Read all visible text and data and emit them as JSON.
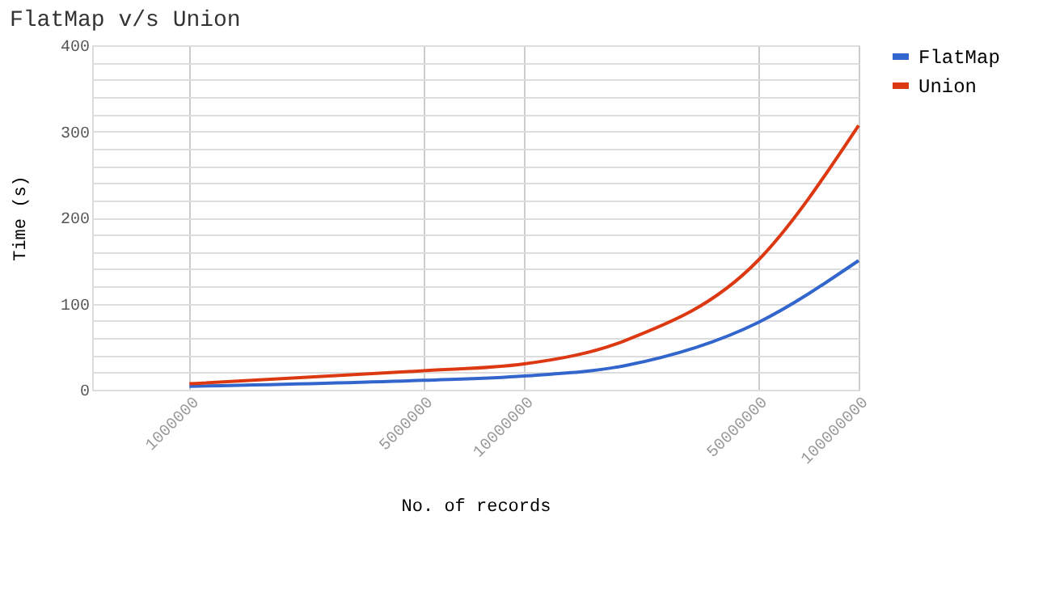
{
  "chart_data": {
    "type": "line",
    "title": "FlatMap v/s Union",
    "xlabel": "No. of records",
    "ylabel": "Time (s)",
    "x": [
      1000000,
      5000000,
      10000000,
      20000000,
      50000000,
      100000000
    ],
    "series": [
      {
        "name": "FlatMap",
        "color": "#3366cc",
        "values": [
          4,
          11,
          16,
          28,
          78,
          150
        ]
      },
      {
        "name": "Union",
        "color": "#dc3912",
        "values": [
          7,
          22,
          30,
          57,
          150,
          307
        ]
      }
    ],
    "log": "x",
    "xlim": [
      512000,
      100000000
    ],
    "xticks": [
      1000000,
      5000000,
      10000000,
      50000000,
      100000000
    ],
    "ylim": [
      0,
      400
    ],
    "yticks": [
      0,
      {
        "value": 20,
        "label": null
      },
      {
        "value": 40,
        "label": null
      },
      {
        "value": 60,
        "label": null
      },
      {
        "value": 80,
        "label": null
      },
      100,
      {
        "value": 120,
        "label": null
      },
      {
        "value": 140,
        "label": null
      },
      {
        "value": 160,
        "label": null
      },
      {
        "value": 180,
        "label": null
      },
      200,
      {
        "value": 220,
        "label": null
      },
      {
        "value": 240,
        "label": null
      },
      {
        "value": 260,
        "label": null
      },
      {
        "value": 280,
        "label": null
      },
      300,
      {
        "value": 320,
        "label": null
      },
      {
        "value": 340,
        "label": null
      },
      {
        "value": 360,
        "label": null
      },
      {
        "value": 380,
        "label": null
      },
      400
    ],
    "grid": true,
    "legend": "right",
    "marker": "none",
    "line_style": "solid"
  }
}
